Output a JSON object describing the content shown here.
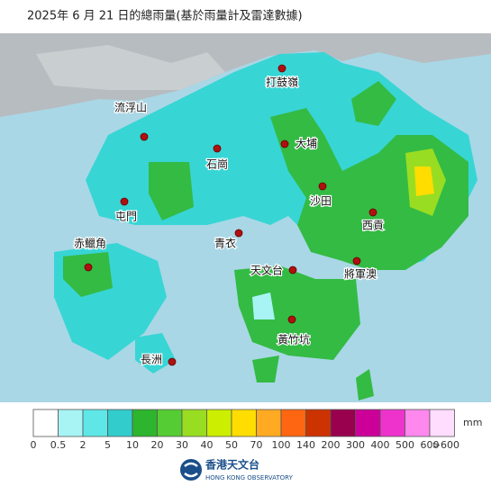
{
  "title": "2025年 6 月 21 日的總雨量(基於雨量計及雷達數據)",
  "stations": [
    "打鼓嶺",
    "流浮山",
    "石崗",
    "大埔",
    "沙田",
    "屯門",
    "西貢",
    "青衣",
    "赤鱲角",
    "天文台",
    "將軍澳",
    "黃竹坑",
    "長洲"
  ],
  "legend": {
    "unit": "mm",
    "colors": [
      "#ffffff",
      "#a8f4f4",
      "#5fe6e6",
      "#33cccc",
      "#2db52d",
      "#55cc33",
      "#99dd22",
      "#ccee00",
      "#ffdd00",
      "#ffaa22",
      "#ff6611",
      "#cc3300",
      "#99004d",
      "#cc0099",
      "#ee33cc",
      "#ff88ee",
      "#ffddff"
    ],
    "labels": [
      "0",
      "0.5",
      "2",
      "5",
      "10",
      "20",
      "30",
      "40",
      "50",
      "70",
      "100",
      "140",
      "200",
      "300",
      "400",
      "500",
      "600"
    ],
    "last_label": ">600"
  },
  "logo": {
    "name_zh": "香港天文台",
    "name_en": "HONG KONG OBSERVATORY"
  }
}
